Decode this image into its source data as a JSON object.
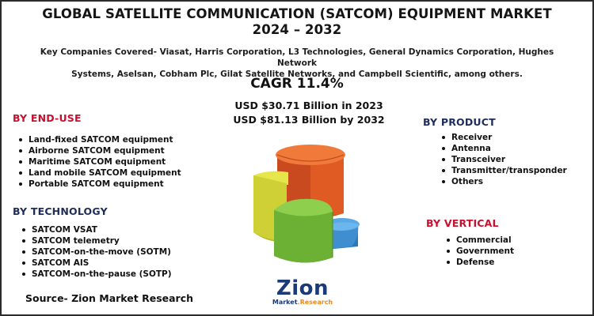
{
  "title": {
    "line1": "GLOBAL SATELLITE COMMUNICATION (SATCOM) EQUIPMENT MARKET",
    "line2": "2024 – 2032"
  },
  "subtitle": {
    "line1": "Key Companies Covered- Viasat, Harris Corporation, L3 Technologies, General Dynamics Corporation, Hughes Network",
    "line2": "Systems, Aselsan, Cobham Plc, Gilat Satellite Networks, and Campbell Scientific, among others."
  },
  "cagr": "CAGR 11.4%",
  "market": {
    "value_2023": "USD $30.71 Billion in 2023",
    "value_2032": "USD $81.13 Billion by 2032"
  },
  "segments": {
    "end_use": {
      "heading": "BY END-USE",
      "items": [
        "Land-fixed SATCOM equipment",
        "Airborne SATCOM equipment",
        "Maritime SATCOM equipment",
        "Land mobile SATCOM equipment",
        "Portable SATCOM equipment"
      ]
    },
    "technology": {
      "heading": "BY TECHNOLOGY",
      "items": [
        "SATCOM VSAT",
        "SATCOM telemetry",
        "SATCOM-on-the-move (SOTM)",
        "SATCOM AIS",
        "SATCOM-on-the-pause (SOTP)"
      ]
    },
    "product": {
      "heading": "BY PRODUCT",
      "items": [
        "Receiver",
        "Antenna",
        "Transceiver",
        "Transmitter/transponder",
        "Others"
      ]
    },
    "vertical": {
      "heading": "BY VERTICAL",
      "items": [
        "Commercial",
        "Government",
        "Defense"
      ]
    }
  },
  "colors": {
    "heading_red": "#c8102e",
    "heading_navy": "#1f2d5c",
    "pie_orange": "#e8622c",
    "pie_yellow": "#d8d83a",
    "pie_green": "#7cc040",
    "pie_blue": "#4a9ad8"
  },
  "source": "Source- Zion Market Research",
  "logo": {
    "word": "Zion",
    "sub_main": "Market",
    "sub_accent": ".Research"
  }
}
